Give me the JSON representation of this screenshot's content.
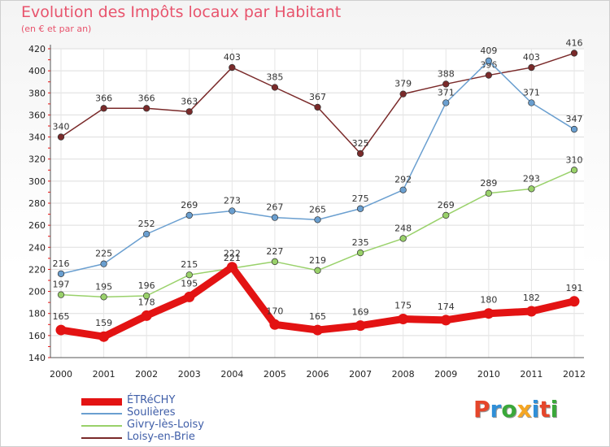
{
  "chart_data": {
    "type": "line",
    "title": "Evolution des Impôts locaux par Habitant",
    "subtitle": "(en € et par an)",
    "x": [
      "2000",
      "2001",
      "2002",
      "2003",
      "2004",
      "2005",
      "2006",
      "2007",
      "2008",
      "2009",
      "2010",
      "2011",
      "2012"
    ],
    "ylim": [
      140,
      420
    ],
    "yticks": [
      140,
      160,
      180,
      200,
      220,
      240,
      260,
      280,
      300,
      320,
      340,
      360,
      380,
      400,
      420
    ],
    "grid": true,
    "legend": "bottom-left",
    "series": [
      {
        "name": "ÉTRéCHY",
        "color": "#e31313",
        "values": [
          165,
          159,
          178,
          195,
          222,
          170,
          165,
          169,
          175,
          174,
          180,
          182,
          191
        ]
      },
      {
        "name": "Soulières",
        "color": "#6a9fd0",
        "values": [
          216,
          225,
          252,
          269,
          273,
          267,
          265,
          275,
          292,
          371,
          409,
          371,
          347
        ]
      },
      {
        "name": "Givry-lès-Loisy",
        "color": "#99d16a",
        "values": [
          197,
          195,
          196,
          215,
          221,
          227,
          219,
          235,
          248,
          269,
          289,
          293,
          310
        ]
      },
      {
        "name": "Loisy-en-Brie",
        "color": "#7a2a2a",
        "values": [
          340,
          366,
          366,
          363,
          403,
          385,
          367,
          325,
          379,
          388,
          396,
          403,
          416
        ]
      }
    ]
  },
  "logo": {
    "text": "Proxiti",
    "colors": [
      "#e5462b",
      "#2f8fd8",
      "#3aa83a",
      "#f5a623",
      "#2f8fd8",
      "#e5462b",
      "#3aa83a"
    ]
  }
}
